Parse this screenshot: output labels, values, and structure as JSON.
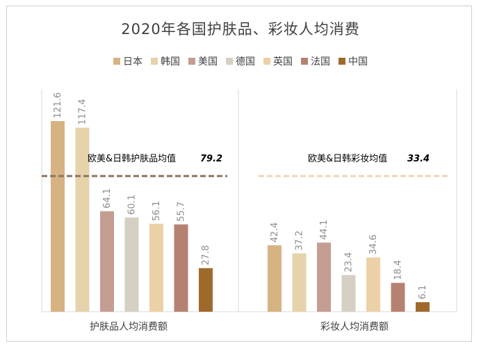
{
  "chart_data": {
    "type": "bar",
    "title": "2020年各国护肤品、彩妆人均消费",
    "legend_position": "top",
    "grid": false,
    "series": [
      {
        "name": "日本",
        "color": "#d7b384"
      },
      {
        "name": "韩国",
        "color": "#e6d3ac"
      },
      {
        "name": "美国",
        "color": "#c49e92"
      },
      {
        "name": "德国",
        "color": "#d6cfc3"
      },
      {
        "name": "英国",
        "color": "#edd1a6"
      },
      {
        "name": "法国",
        "color": "#b58272"
      },
      {
        "name": "中国",
        "color": "#9e6a2c"
      }
    ],
    "groups": [
      {
        "label": "护肤品人均消费额",
        "values": [
          121.6,
          117.4,
          64.1,
          60.1,
          56.1,
          55.7,
          27.8
        ],
        "value_labels": [
          "121.6",
          "117.4",
          "64.1",
          "60.1",
          "56.1",
          "55.7",
          "27.8"
        ],
        "average_label": "欧美&日韩护肤品均值",
        "average_value": 79.2,
        "average_value_label": "79.2",
        "average_color": "#8b7560"
      },
      {
        "label": "彩妆人均消费额",
        "values": [
          42.4,
          37.2,
          44.1,
          23.4,
          34.6,
          18.4,
          6.1
        ],
        "value_labels": [
          "42.4",
          "37.2",
          "44.1",
          "23.4",
          "34.6",
          "18.4",
          "6.1"
        ],
        "average_label": "欧美&日韩彩妆均值",
        "average_value": 33.4,
        "average_value_label": "33.4",
        "average_color": "#ecd7b6"
      }
    ],
    "ylim": [
      0,
      140
    ]
  }
}
